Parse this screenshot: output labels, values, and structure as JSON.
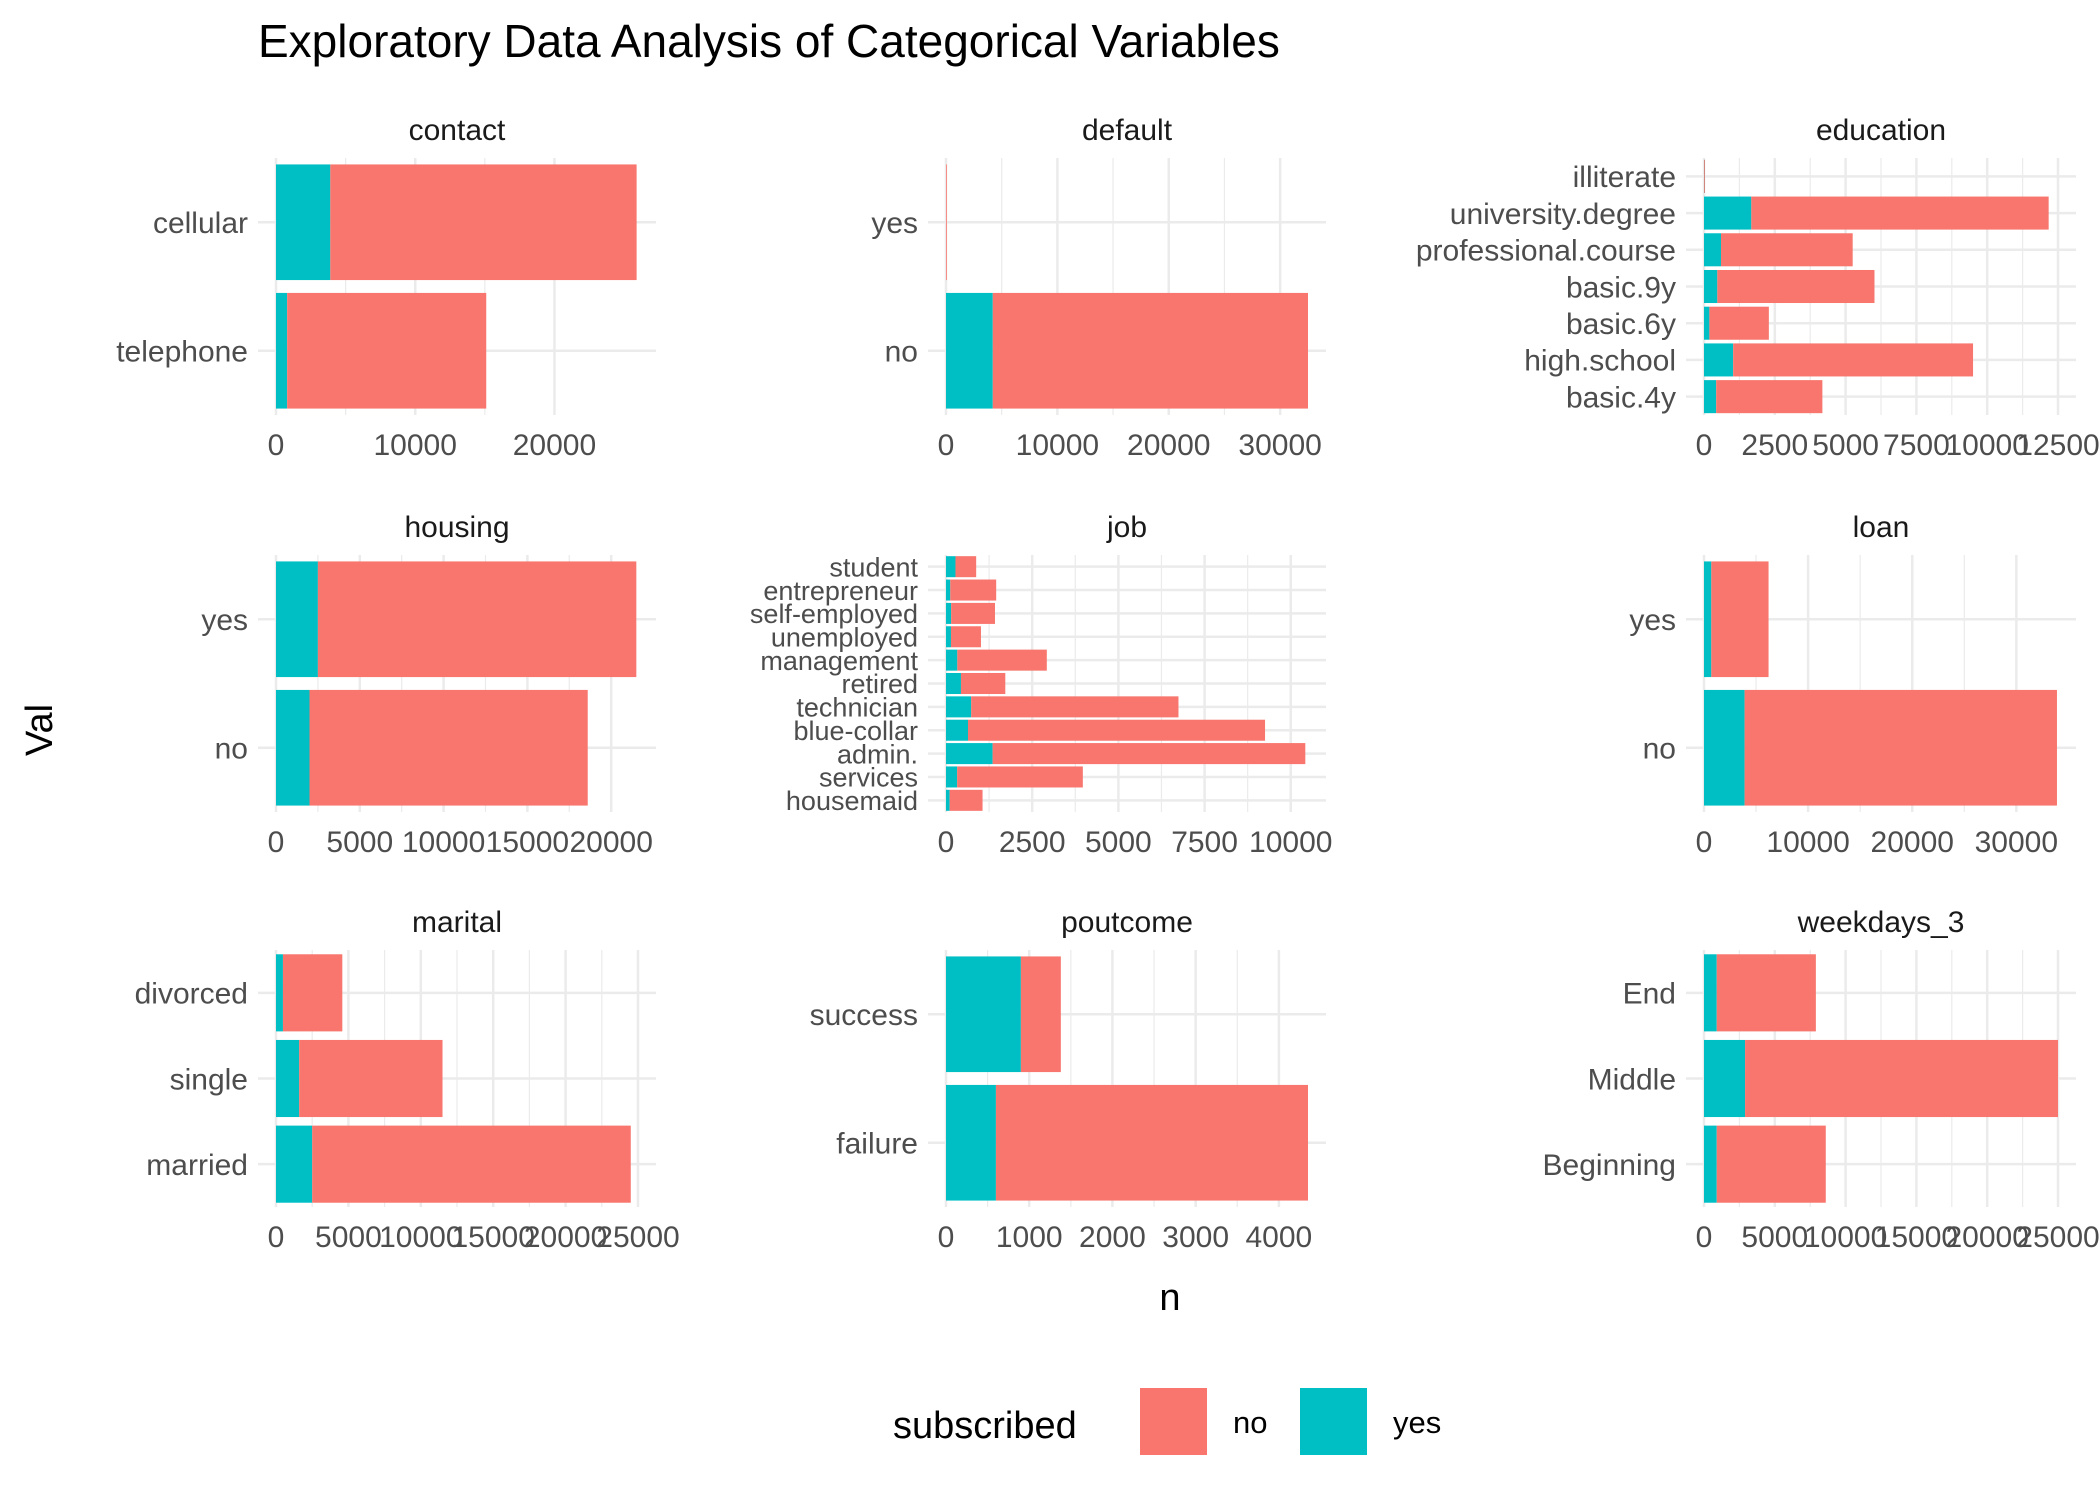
{
  "title": "Exploratory Data Analysis of Categorical Variables",
  "xlabel": "n",
  "ylabel": "Val",
  "legend": {
    "title": "subscribed",
    "placement": "bottom",
    "items": [
      {
        "label": "no",
        "color": "#F8766D"
      },
      {
        "label": "yes",
        "color": "#00BFC4"
      }
    ]
  },
  "chart_data": {
    "type": "bar",
    "orientation": "horizontal",
    "stacked": true,
    "grid": true,
    "panels": [
      {
        "title": "contact",
        "categories": [
          "telephone",
          "cellular"
        ],
        "xlim": [
          0,
          26000
        ],
        "ticks": [
          0,
          10000,
          20000
        ],
        "tick_labels": [
          "0",
          "10000",
          "20000"
        ],
        "series": [
          {
            "name": "yes",
            "values": [
              800,
              3900
            ]
          },
          {
            "name": "no",
            "values": [
              14300,
              22000
            ]
          }
        ]
      },
      {
        "title": "default",
        "categories": [
          "no",
          "yes"
        ],
        "xlim": [
          0,
          32500
        ],
        "ticks": [
          0,
          10000,
          20000,
          30000
        ],
        "tick_labels": [
          "0",
          "10000",
          "20000",
          "30000"
        ],
        "series": [
          {
            "name": "yes",
            "values": [
              4200,
              0
            ]
          },
          {
            "name": "no",
            "values": [
              28300,
              3
            ]
          }
        ]
      },
      {
        "title": "education",
        "categories": [
          "basic.4y",
          "high.school",
          "basic.6y",
          "basic.9y",
          "professional.course",
          "university.degree",
          "illiterate"
        ],
        "xlim": [
          0,
          12500
        ],
        "ticks": [
          0,
          2500,
          5000,
          7500,
          10000,
          12500
        ],
        "tick_labels": [
          "0",
          "2500",
          "5000",
          "7500",
          "10000",
          "12500"
        ],
        "series": [
          {
            "name": "yes",
            "values": [
              430,
              1030,
              190,
              470,
              600,
              1670,
              4
            ]
          },
          {
            "name": "no",
            "values": [
              3750,
              8470,
              2100,
              5550,
              4650,
              10500,
              14
            ]
          }
        ]
      },
      {
        "title": "housing",
        "categories": [
          "no",
          "yes"
        ],
        "xlim": [
          0,
          21600
        ],
        "ticks": [
          0,
          5000,
          10000,
          15000,
          20000
        ],
        "tick_labels": [
          "0",
          "5000",
          "10000",
          "15000",
          "20000"
        ],
        "series": [
          {
            "name": "yes",
            "values": [
              2000,
              2500
            ]
          },
          {
            "name": "no",
            "values": [
              16600,
              19000
            ]
          }
        ]
      },
      {
        "title": "job",
        "categories": [
          "housemaid",
          "services",
          "admin.",
          "blue-collar",
          "technician",
          "retired",
          "management",
          "unemployed",
          "self-employed",
          "entrepreneur",
          "student"
        ],
        "xlim": [
          0,
          10500
        ],
        "ticks": [
          0,
          2500,
          5000,
          7500,
          10000
        ],
        "tick_labels": [
          "0",
          "2500",
          "5000",
          "7500",
          "10000"
        ],
        "series": [
          {
            "name": "yes",
            "values": [
              106,
              323,
              1352,
              638,
              730,
              434,
              328,
              144,
              149,
              124,
              275
            ]
          },
          {
            "name": "no",
            "values": [
              954,
              3646,
              9070,
              8616,
              6013,
              1286,
              2596,
              870,
              1272,
              1332,
              600
            ]
          }
        ]
      },
      {
        "title": "loan",
        "categories": [
          "no",
          "yes"
        ],
        "xlim": [
          0,
          34000
        ],
        "ticks": [
          0,
          10000,
          20000,
          30000
        ],
        "tick_labels": [
          "0",
          "10000",
          "20000",
          "30000"
        ],
        "series": [
          {
            "name": "yes",
            "values": [
              3900,
              700
            ]
          },
          {
            "name": "no",
            "values": [
              30000,
              5500
            ]
          }
        ]
      },
      {
        "title": "marital",
        "categories": [
          "married",
          "single",
          "divorced"
        ],
        "xlim": [
          0,
          25000
        ],
        "ticks": [
          0,
          5000,
          10000,
          15000,
          20000,
          25000
        ],
        "tick_labels": [
          "0",
          "5000",
          "10000",
          "15000",
          "20000",
          "25000"
        ],
        "series": [
          {
            "name": "yes",
            "values": [
              2500,
              1600,
              480
            ]
          },
          {
            "name": "no",
            "values": [
              22000,
              9900,
              4100
            ]
          }
        ]
      },
      {
        "title": "poutcome",
        "categories": [
          "failure",
          "success"
        ],
        "xlim": [
          0,
          4350
        ],
        "ticks": [
          0,
          1000,
          2000,
          3000,
          4000
        ],
        "tick_labels": [
          "0",
          "1000",
          "2000",
          "3000",
          "4000"
        ],
        "series": [
          {
            "name": "yes",
            "values": [
              600,
              900
            ]
          },
          {
            "name": "no",
            "values": [
              3750,
              480
            ]
          }
        ]
      },
      {
        "title": "weekdays_3",
        "categories": [
          "Beginning",
          "Middle",
          "End"
        ],
        "xlim": [
          0,
          25000
        ],
        "ticks": [
          0,
          5000,
          10000,
          15000,
          20000,
          25000
        ],
        "tick_labels": [
          "0",
          "5000",
          "10000",
          "15000",
          "20000",
          "25000"
        ],
        "series": [
          {
            "name": "yes",
            "values": [
              900,
              2900,
              900
            ]
          },
          {
            "name": "no",
            "values": [
              7700,
              22100,
              7000
            ]
          }
        ]
      }
    ]
  }
}
